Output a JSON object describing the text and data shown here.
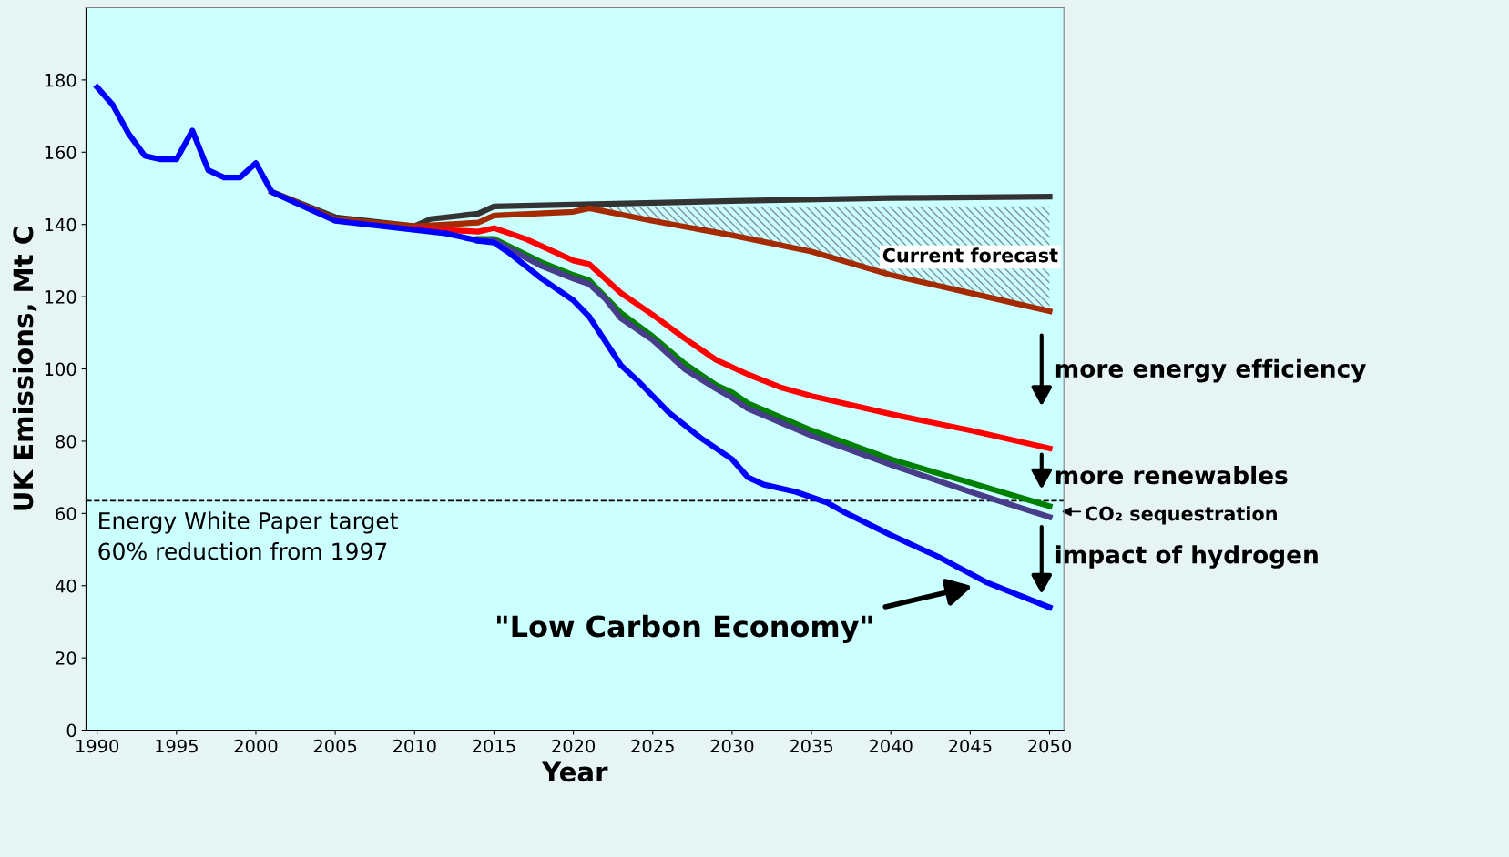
{
  "chart_data": {
    "type": "line",
    "xlabel": "Year",
    "ylabel": "UK Emissions, Mt C",
    "xlim": [
      1989.3,
      2050.9
    ],
    "xticks": [
      1990,
      1995,
      2000,
      2005,
      2010,
      2015,
      2020,
      2025,
      2030,
      2035,
      2040,
      2045,
      2050
    ],
    "ylim": [
      0,
      200
    ],
    "yticks": [
      0,
      20,
      40,
      60,
      80,
      100,
      120,
      140,
      160,
      180
    ],
    "grid": false,
    "marker": "none",
    "line_style": "solid",
    "series": [
      {
        "color": "#333333",
        "x": [
          2001,
          2005,
          2010,
          2011,
          2013,
          2014,
          2015,
          2020,
          2030,
          2040,
          2050
        ],
        "values": [
          149,
          142,
          139.5,
          141.5,
          142.5,
          143,
          145,
          145.5,
          146.5,
          147.3,
          147.7
        ]
      },
      {
        "color": "#a52a00",
        "x": [
          2001,
          2005,
          2010,
          2014,
          2015,
          2020,
          2021,
          2025,
          2030,
          2035,
          2040,
          2045,
          2050
        ],
        "values": [
          149,
          141.5,
          139.5,
          140.5,
          142.5,
          143.5,
          144.5,
          141,
          137,
          132.5,
          126,
          121,
          116
        ],
        "lower": [
          null,
          null,
          null,
          null,
          null,
          null,
          144.5,
          141,
          137,
          132.5,
          126,
          121,
          116
        ],
        "upper": [
          null,
          null,
          null,
          null,
          null,
          null,
          145,
          145,
          145,
          145,
          145,
          145,
          145
        ]
      },
      {
        "color": "#ff0000",
        "x": [
          2010,
          2014,
          2015,
          2017,
          2020,
          2021,
          2022,
          2023,
          2025,
          2027,
          2029,
          2031,
          2033,
          2035,
          2040,
          2045,
          2050
        ],
        "values": [
          139,
          138,
          139,
          136,
          130,
          129,
          125,
          121,
          115,
          108.5,
          102.5,
          98.5,
          95,
          92.5,
          87.5,
          83,
          78
        ]
      },
      {
        "color": "#008000",
        "x": [
          2014,
          2015,
          2018,
          2020,
          2021,
          2022,
          2023,
          2025,
          2027,
          2029,
          2030,
          2031,
          2035,
          2040,
          2045,
          2050
        ],
        "values": [
          136,
          136,
          129.5,
          126,
          124.5,
          120,
          115.5,
          109,
          101.5,
          95.5,
          93.5,
          90.5,
          83,
          75,
          68.5,
          62
        ]
      },
      {
        "color": "#483d8b",
        "x": [
          2014,
          2015,
          2018,
          2020,
          2021,
          2022,
          2023,
          2025,
          2027,
          2029,
          2030,
          2031,
          2035,
          2040,
          2045,
          2050
        ],
        "values": [
          135.5,
          135.5,
          128.5,
          125,
          123.5,
          119.5,
          114,
          108,
          100,
          94.5,
          92,
          89,
          81.5,
          73.5,
          66,
          59
        ]
      },
      {
        "color": "#0000ff",
        "x": [
          1990,
          1991,
          1992,
          1993,
          1994,
          1995,
          1996,
          1997,
          1998,
          1999,
          2000,
          2001,
          2005,
          2010,
          2012,
          2014,
          2015,
          2016,
          2018,
          2020,
          2021,
          2023,
          2024,
          2026,
          2028,
          2030,
          2031,
          2032,
          2034,
          2036,
          2037,
          2040,
          2043,
          2046,
          2050
        ],
        "values": [
          178,
          173,
          165,
          159,
          158,
          158,
          166,
          155,
          153,
          153,
          157,
          149,
          141,
          138.5,
          137.5,
          135.5,
          135,
          132,
          125,
          119,
          114.5,
          101,
          97,
          88,
          81,
          75,
          70,
          68,
          66,
          63,
          60.5,
          54,
          48,
          41,
          34
        ]
      }
    ],
    "ref_lines": [
      {
        "axis": "y",
        "value": 63.5,
        "label": "Energy White Paper target\n60% reduction from 1997",
        "color": "#000000",
        "line_style": "dashed"
      }
    ],
    "annotations": [
      "Current forecast",
      "more energy efficiency",
      "more renewables",
      "CO₂ sequestration",
      "impact of hydrogen",
      "\"Low Carbon Economy\""
    ]
  }
}
